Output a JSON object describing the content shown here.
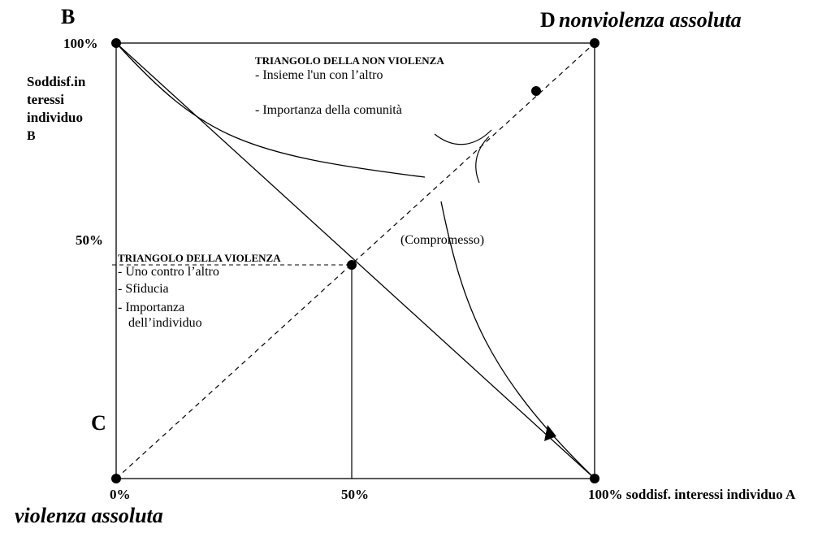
{
  "corners": {
    "b": "B",
    "c": "C",
    "d_letter": "D",
    "d_label": "nonviolenza assoluta",
    "origin_label": "violenza assoluta"
  },
  "y_axis": {
    "label_lines": [
      "Soddisf.in",
      "teressi",
      "individuo",
      "B"
    ],
    "ticks": {
      "top": "100%",
      "mid": "50%"
    }
  },
  "x_axis": {
    "ticks": {
      "start": "0%",
      "mid": "50%",
      "end": "100% soddisf. interessi individuo A"
    }
  },
  "nonviolence_triangle": {
    "title": "TRIANGOLO DELLA NON VIOLENZA",
    "items": [
      "- Insieme l'un con l’altro",
      "- Importanza della comunità"
    ]
  },
  "violence_triangle": {
    "title": "TRIANGOLO DELLA VIOLENZA",
    "items": [
      "- Uno contro l’altro",
      "- Sfiducia",
      "- Importanza",
      "dell’individuo"
    ]
  },
  "compromise_label": "(Compromesso)",
  "colors": {
    "ink": "#000000",
    "background": "#ffffff"
  }
}
